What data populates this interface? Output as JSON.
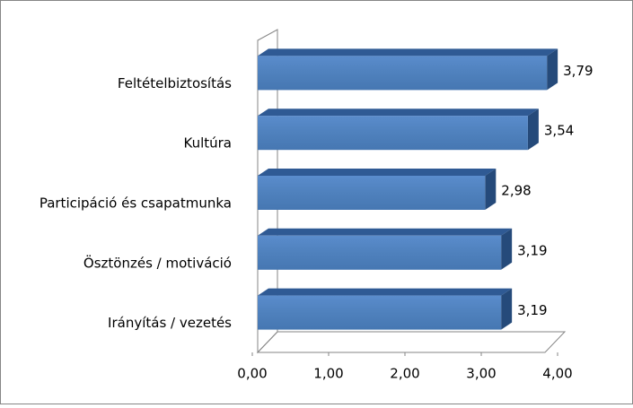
{
  "chart_data": {
    "type": "bar",
    "orientation": "horizontal",
    "categories": [
      "Feltételbiztosítás",
      "Kultúra",
      "Participáció és csapatmunka",
      "Ösztönzés / motiváció",
      "Irányítás / vezetés"
    ],
    "values": [
      3.79,
      3.54,
      2.98,
      3.19,
      3.19
    ],
    "value_labels": [
      "3,79",
      "3,54",
      "2,98",
      "3,19",
      "3,19"
    ],
    "color": "#4f81bd",
    "xlim": [
      0,
      4
    ],
    "xticks": [
      {
        "value": 0,
        "label": "0,00"
      },
      {
        "value": 1,
        "label": "1,00"
      },
      {
        "value": 2,
        "label": "2,00"
      },
      {
        "value": 3,
        "label": "3,00"
      },
      {
        "value": 4,
        "label": "4,00"
      }
    ]
  }
}
